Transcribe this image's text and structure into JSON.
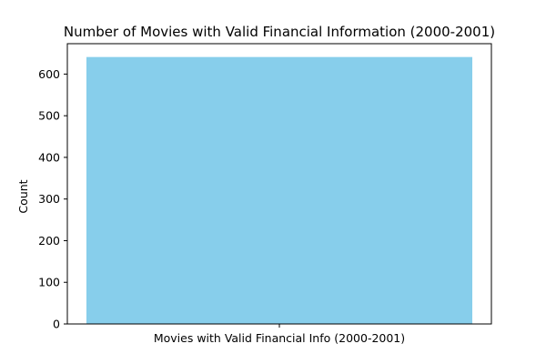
{
  "chart_data": {
    "type": "bar",
    "title": "Number of Movies with Valid Financial Information (2000-2001)",
    "xlabel": "",
    "ylabel": "Count",
    "categories": [
      "Movies with Valid Financial Info (2000-2001)"
    ],
    "values": [
      641
    ],
    "ylim": [
      0,
      673
    ],
    "yticks": [
      0,
      100,
      200,
      300,
      400,
      500,
      600
    ],
    "bar_color": "#87CEEB",
    "grid": false,
    "legend": "none"
  }
}
